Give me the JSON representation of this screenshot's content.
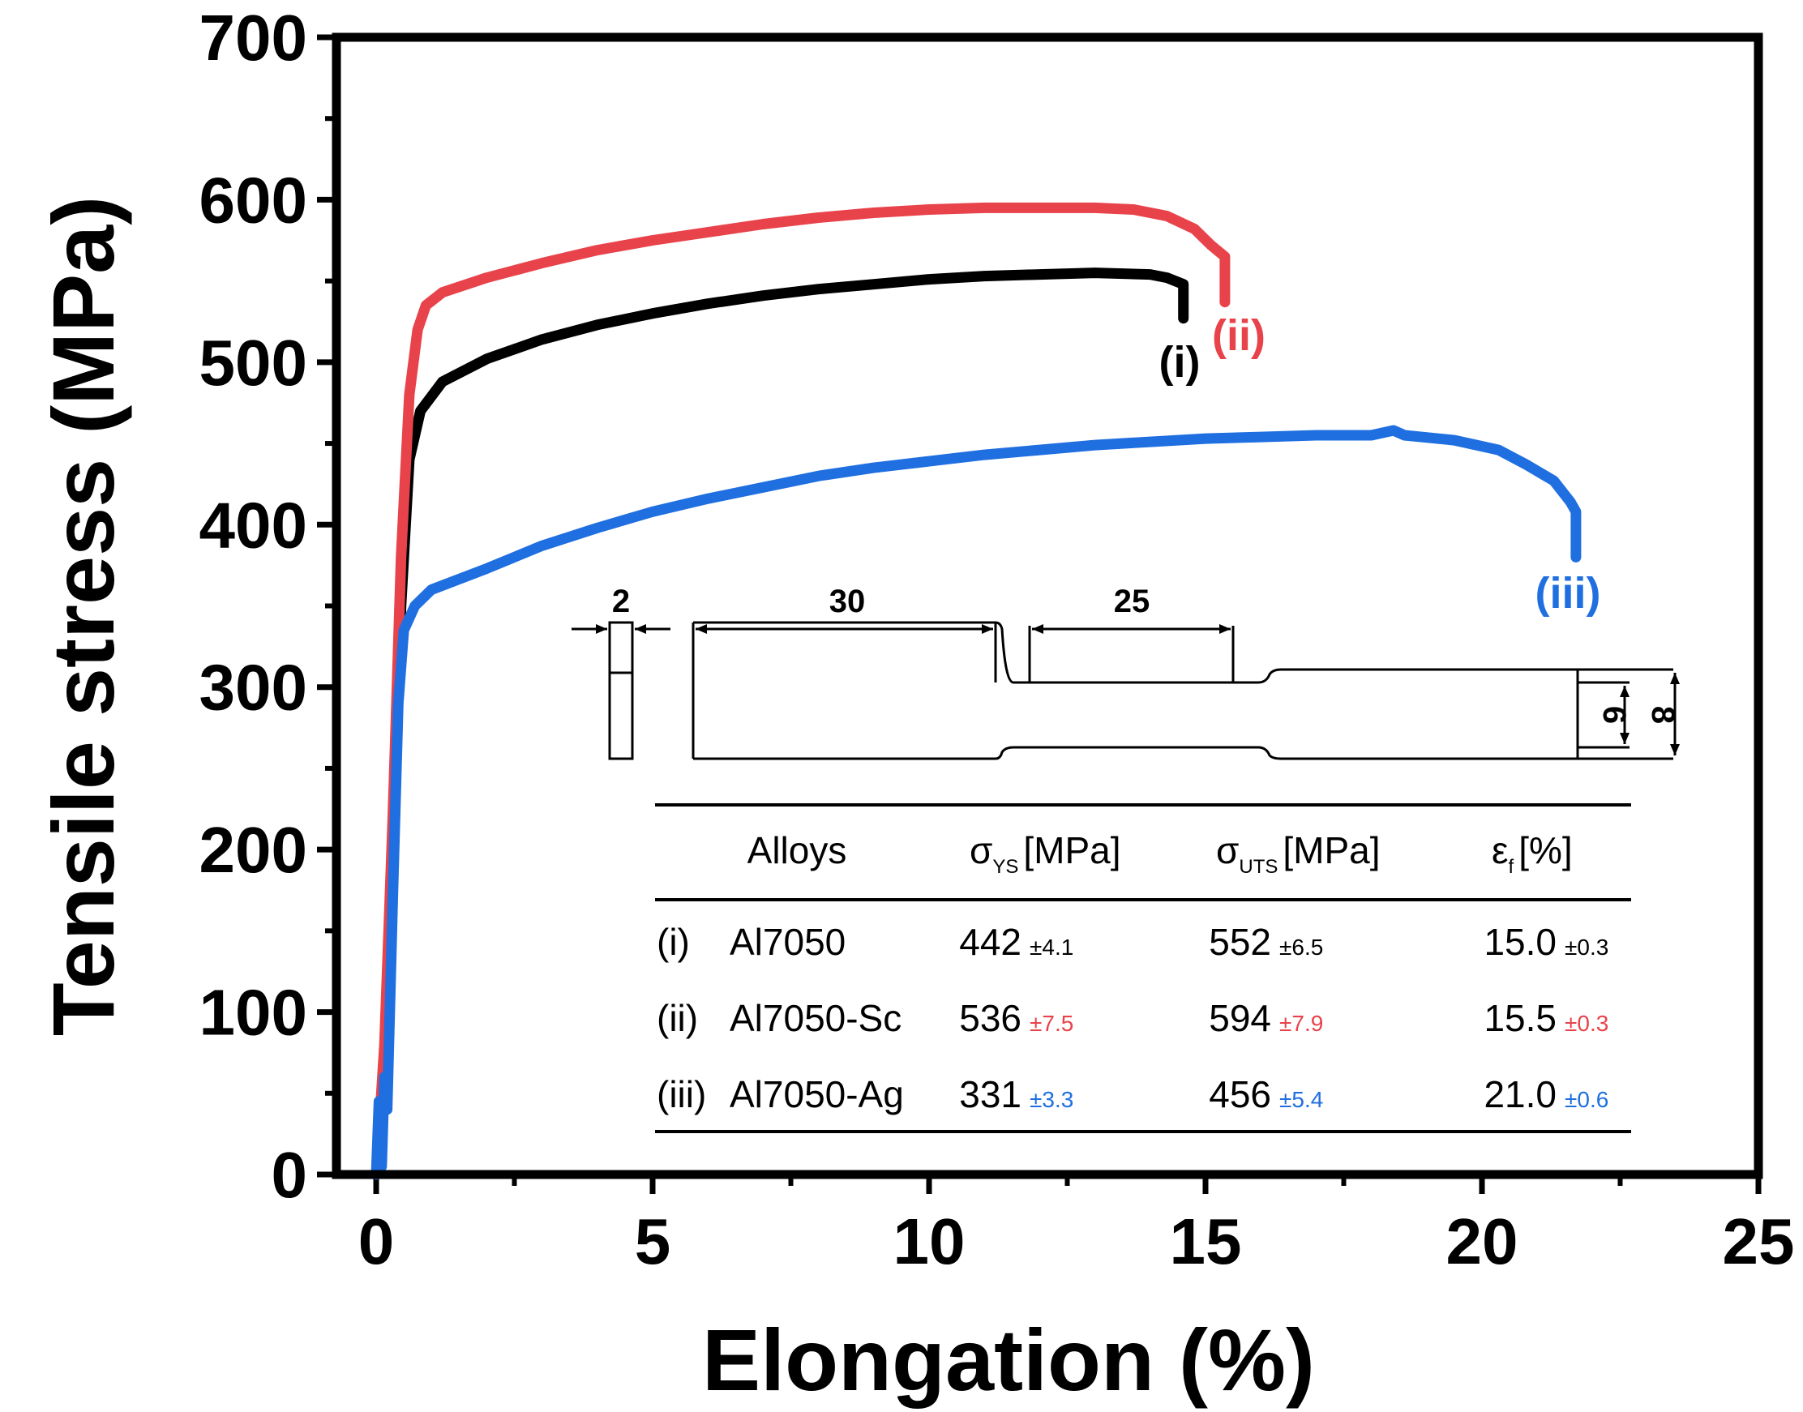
{
  "chart_data": {
    "type": "line",
    "xlabel": "Elongation (%)",
    "ylabel": "Tensile stress (MPa)",
    "xlim": [
      0,
      25
    ],
    "ylim": [
      0,
      700
    ],
    "x_ticks": [
      "0",
      "5",
      "10",
      "15",
      "20",
      "25"
    ],
    "y_ticks": [
      "0",
      "100",
      "200",
      "300",
      "400",
      "500",
      "600",
      "700"
    ],
    "series": [
      {
        "name": "(i)",
        "color": "#000000",
        "points": [
          [
            0,
            0
          ],
          [
            0.15,
            60
          ],
          [
            0.3,
            200
          ],
          [
            0.45,
            350
          ],
          [
            0.6,
            440
          ],
          [
            0.8,
            470
          ],
          [
            1.2,
            488
          ],
          [
            2,
            502
          ],
          [
            3,
            514
          ],
          [
            4,
            523
          ],
          [
            5,
            530
          ],
          [
            6,
            536
          ],
          [
            7,
            541
          ],
          [
            8,
            545
          ],
          [
            9,
            548
          ],
          [
            10,
            551
          ],
          [
            11,
            553
          ],
          [
            12,
            554
          ],
          [
            13,
            555
          ],
          [
            14,
            554
          ],
          [
            14.3,
            552
          ],
          [
            14.6,
            548
          ],
          [
            14.6,
            527
          ]
        ]
      },
      {
        "name": "(ii)",
        "color": "#e8434b",
        "points": [
          [
            0,
            0
          ],
          [
            0.15,
            80
          ],
          [
            0.3,
            220
          ],
          [
            0.45,
            380
          ],
          [
            0.6,
            480
          ],
          [
            0.75,
            520
          ],
          [
            0.9,
            535
          ],
          [
            1.2,
            543
          ],
          [
            2,
            552
          ],
          [
            3,
            561
          ],
          [
            4,
            569
          ],
          [
            5,
            575
          ],
          [
            6,
            580
          ],
          [
            7,
            585
          ],
          [
            8,
            589
          ],
          [
            9,
            592
          ],
          [
            10,
            594
          ],
          [
            11,
            595
          ],
          [
            12,
            595
          ],
          [
            13,
            595
          ],
          [
            13.7,
            594
          ],
          [
            14.3,
            590
          ],
          [
            14.8,
            582
          ],
          [
            15.1,
            572
          ],
          [
            15.35,
            565
          ],
          [
            15.35,
            537
          ]
        ]
      },
      {
        "name": "(iii)",
        "color": "#1f6fe0",
        "points": [
          [
            0,
            0
          ],
          [
            0.05,
            45
          ],
          [
            0.1,
            5
          ],
          [
            0.15,
            60
          ],
          [
            0.2,
            40
          ],
          [
            0.3,
            170
          ],
          [
            0.4,
            290
          ],
          [
            0.5,
            335
          ],
          [
            0.7,
            350
          ],
          [
            1,
            360
          ],
          [
            2,
            373
          ],
          [
            3,
            387
          ],
          [
            4,
            398
          ],
          [
            5,
            408
          ],
          [
            6,
            416
          ],
          [
            7,
            423
          ],
          [
            8,
            430
          ],
          [
            9,
            435
          ],
          [
            10,
            439
          ],
          [
            11,
            443
          ],
          [
            12,
            446
          ],
          [
            13,
            449
          ],
          [
            14,
            451
          ],
          [
            15,
            453
          ],
          [
            16,
            454
          ],
          [
            17,
            455
          ],
          [
            18,
            455
          ],
          [
            18.4,
            458
          ],
          [
            18.6,
            455
          ],
          [
            19.5,
            452
          ],
          [
            20.3,
            446
          ],
          [
            20.8,
            437
          ],
          [
            21.3,
            427
          ],
          [
            21.6,
            414
          ],
          [
            21.7,
            408
          ],
          [
            21.7,
            380
          ]
        ]
      }
    ],
    "curve_labels": [
      "(i)",
      "(ii)",
      "(iii)"
    ],
    "inset_dimensions": [
      "2",
      "30",
      "25",
      "6",
      "8"
    ],
    "table": {
      "headers": {
        "alloys": "Alloys",
        "ys_symbol": "σ",
        "ys_sub": "YS",
        "ys_unit": "[MPa]",
        "uts_symbol": "σ",
        "uts_sub": "UTS",
        "uts_unit": "[MPa]",
        "ef_symbol": "ε",
        "ef_sub": "f",
        "ef_unit": "[%]"
      },
      "rows": [
        {
          "id": "(i)",
          "alloy": "Al7050",
          "ys": "442",
          "ys_err": "±4.1",
          "uts": "552",
          "uts_err": "±6.5",
          "ef": "15.0",
          "ef_err": "±0.3",
          "color": "#000000"
        },
        {
          "id": "(ii)",
          "alloy": "Al7050-Sc",
          "ys": "536",
          "ys_err": "±7.5",
          "uts": "594",
          "uts_err": "±7.9",
          "ef": "15.5",
          "ef_err": "±0.3",
          "color": "#e8434b"
        },
        {
          "id": "(iii)",
          "alloy": "Al7050-Ag",
          "ys": "331",
          "ys_err": "±3.3",
          "uts": "456",
          "uts_err": "±5.4",
          "ef": "21.0",
          "ef_err": "±0.6",
          "color": "#1f6fe0"
        }
      ]
    }
  }
}
